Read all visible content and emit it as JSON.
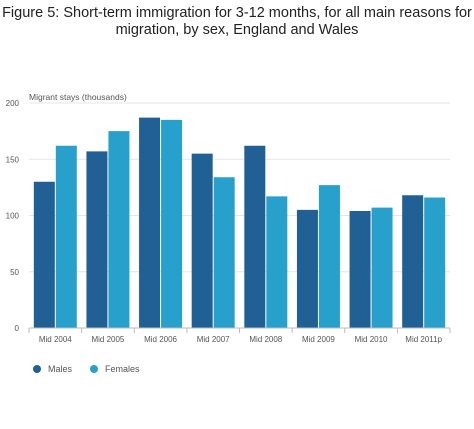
{
  "chart_data": {
    "type": "bar",
    "title_line1": "Figure 5: Short-term immigration for 3-12 months, for all main reasons for",
    "title_line2": "migration, by sex, England and Wales",
    "ylabel": "Migrant stays (thousands)",
    "xlabel": "",
    "ylim": [
      0,
      200
    ],
    "yticks": [
      0,
      50,
      100,
      150,
      200
    ],
    "grid": true,
    "legend_position": "bottom-left",
    "categories": [
      "Mid 2004",
      "Mid 2005",
      "Mid 2006",
      "Mid 2007",
      "Mid 2008",
      "Mid 2009",
      "Mid 2010",
      "Mid 2011p"
    ],
    "series": [
      {
        "name": "Males",
        "color": "#206095",
        "values": [
          130,
          157,
          187,
          155,
          162,
          105,
          104,
          118
        ]
      },
      {
        "name": "Females",
        "color": "#27a0cc",
        "values": [
          162,
          175,
          185,
          134,
          117,
          127,
          107,
          116
        ]
      }
    ]
  }
}
